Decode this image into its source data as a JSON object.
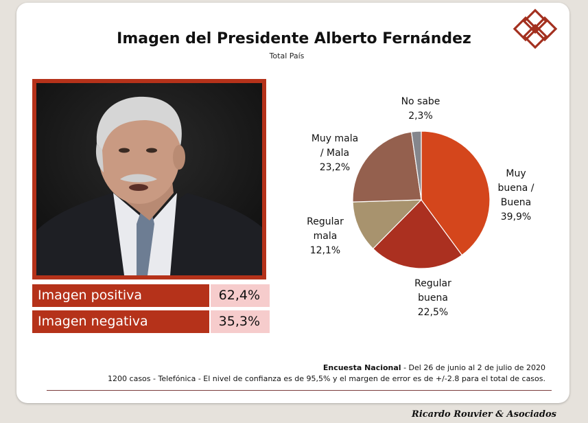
{
  "title": "Imagen del Presidente Alberto Fernández",
  "subtitle": "Total País",
  "logo_icon": "stacked-diamonds-logo",
  "photo_icon": "president-portrait",
  "summary": [
    {
      "label": "Imagen positiva",
      "value": "62,4%"
    },
    {
      "label": "Imagen negativa",
      "value": "35,3%"
    }
  ],
  "chart_data": {
    "type": "pie",
    "title": "",
    "slices": [
      {
        "label_lines": [
          "Muy",
          "buena /",
          "Buena"
        ],
        "value": 39.9,
        "value_text": "39,9%",
        "color": "#d4461c"
      },
      {
        "label_lines": [
          "Regular",
          "buena"
        ],
        "value": 22.5,
        "value_text": "22,5%",
        "color": "#ab3020"
      },
      {
        "label_lines": [
          "Regular",
          "mala"
        ],
        "value": 12.1,
        "value_text": "12,1%",
        "color": "#a8936e"
      },
      {
        "label_lines": [
          "Muy mala",
          "/ Mala"
        ],
        "value": 23.2,
        "value_text": "23,2%",
        "color": "#94604e"
      },
      {
        "label_lines": [
          "No sabe"
        ],
        "value": 2.3,
        "value_text": "2,3%",
        "color": "#85868c"
      }
    ]
  },
  "footer": {
    "survey_name": "Encuesta Nacional",
    "survey_dates": " - Del 26 de junio al 2 de julio de 2020",
    "methodology": "1200 casos - Telefónica  - El nivel de confianza es de 95,5% y el margen de error es de +/-2.8 para el total de casos."
  },
  "brand": "Ricardo Rouvier & Asociados"
}
